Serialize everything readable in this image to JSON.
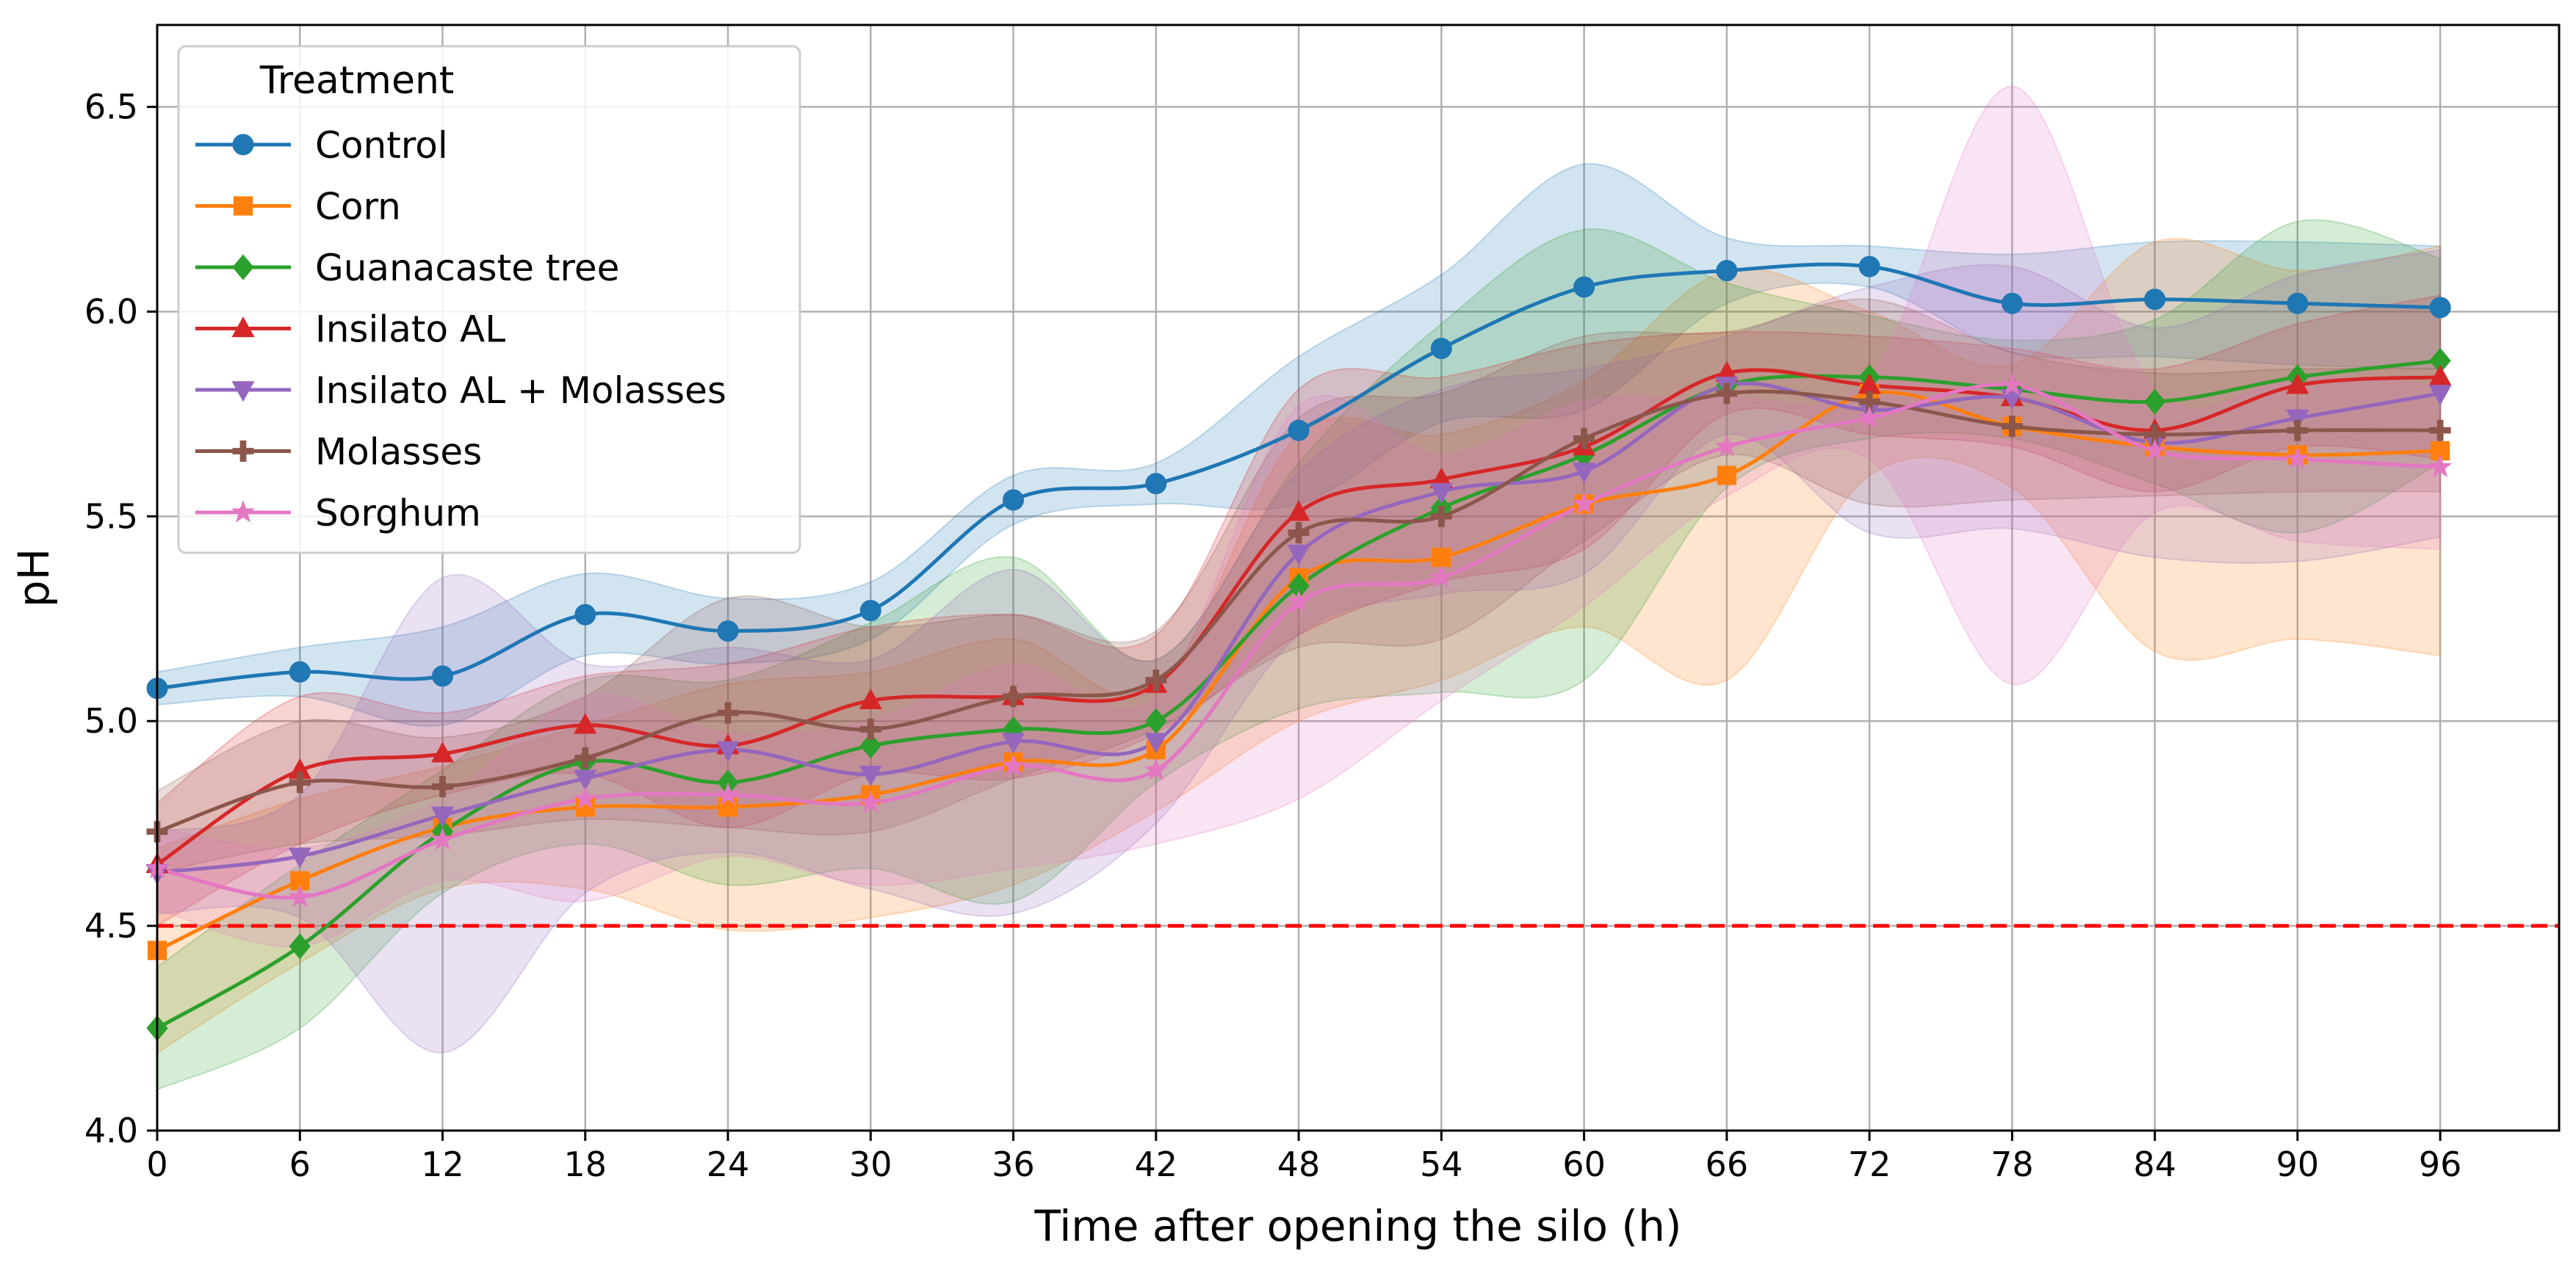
{
  "chart_data": {
    "type": "line",
    "title": "",
    "xlabel": "Time after opening the silo (h)",
    "ylabel": "pH",
    "x": [
      0,
      6,
      12,
      18,
      24,
      30,
      36,
      42,
      48,
      54,
      60,
      66,
      72,
      78,
      84,
      90,
      96
    ],
    "xticks": [
      "0",
      "6",
      "12",
      "18",
      "24",
      "30",
      "36",
      "42",
      "48",
      "54",
      "60",
      "66",
      "72",
      "78",
      "84",
      "90",
      "96"
    ],
    "yticks": [
      "4.0",
      "4.5",
      "5.0",
      "5.5",
      "6.0",
      "6.5"
    ],
    "xlim": [
      0,
      101
    ],
    "ylim": [
      4.0,
      6.7
    ],
    "grid": true,
    "threshold": {
      "y": 4.5,
      "color": "#ff0000",
      "style": "dashed"
    },
    "legend": {
      "title": "Treatment",
      "position": "top-left"
    },
    "series": [
      {
        "name": "Control",
        "color": "#1f77b4",
        "marker": "circle",
        "values": [
          5.08,
          5.12,
          5.11,
          5.26,
          5.22,
          5.27,
          5.54,
          5.58,
          5.71,
          5.91,
          6.06,
          6.1,
          6.11,
          6.02,
          6.03,
          6.02,
          6.01
        ],
        "band": [
          0.04,
          0.06,
          0.12,
          0.1,
          0.08,
          0.07,
          0.06,
          0.05,
          0.18,
          0.18,
          0.3,
          0.08,
          0.05,
          0.12,
          0.14,
          0.15,
          0.15
        ]
      },
      {
        "name": "Corn",
        "color": "#ff7f0e",
        "marker": "square",
        "values": [
          4.44,
          4.61,
          4.74,
          4.79,
          4.79,
          4.82,
          4.9,
          4.93,
          5.35,
          5.4,
          5.53,
          5.6,
          5.8,
          5.72,
          5.67,
          5.65,
          5.66
        ],
        "band": [
          0.25,
          0.2,
          0.15,
          0.2,
          0.3,
          0.3,
          0.3,
          0.15,
          0.35,
          0.3,
          0.3,
          0.5,
          0.2,
          0.15,
          0.5,
          0.45,
          0.5
        ]
      },
      {
        "name": "Guanacaste tree",
        "color": "#2ca02c",
        "marker": "diamond",
        "values": [
          4.25,
          4.45,
          4.73,
          4.9,
          4.85,
          4.94,
          4.98,
          5.0,
          5.33,
          5.52,
          5.65,
          5.82,
          5.84,
          5.81,
          5.78,
          5.84,
          5.88
        ],
        "band": [
          0.15,
          0.2,
          0.15,
          0.2,
          0.25,
          0.3,
          0.42,
          0.15,
          0.3,
          0.45,
          0.55,
          0.25,
          0.15,
          0.12,
          0.2,
          0.38,
          0.25
        ]
      },
      {
        "name": "Insilato AL",
        "color": "#d62728",
        "marker": "triangle-up",
        "values": [
          4.65,
          4.88,
          4.92,
          4.99,
          4.94,
          5.05,
          5.06,
          5.09,
          5.51,
          5.59,
          5.67,
          5.85,
          5.82,
          5.79,
          5.71,
          5.82,
          5.84
        ],
        "band": [
          0.15,
          0.18,
          0.1,
          0.12,
          0.2,
          0.18,
          0.2,
          0.12,
          0.3,
          0.25,
          0.25,
          0.1,
          0.12,
          0.12,
          0.15,
          0.15,
          0.2
        ]
      },
      {
        "name": "Insilato AL + Molasses",
        "color": "#9467bd",
        "marker": "triangle-down",
        "values": [
          4.63,
          4.67,
          4.77,
          4.86,
          4.93,
          4.87,
          4.95,
          4.95,
          5.41,
          5.56,
          5.61,
          5.82,
          5.76,
          5.79,
          5.68,
          5.74,
          5.8
        ],
        "band": [
          0.1,
          0.15,
          0.58,
          0.28,
          0.25,
          0.28,
          0.42,
          0.2,
          0.2,
          0.25,
          0.25,
          0.12,
          0.3,
          0.32,
          0.28,
          0.35,
          0.35
        ]
      },
      {
        "name": "Molasses",
        "color": "#8c564b",
        "marker": "plus",
        "values": [
          4.73,
          4.85,
          4.84,
          4.91,
          5.02,
          4.98,
          5.06,
          5.1,
          5.46,
          5.5,
          5.69,
          5.8,
          5.78,
          5.72,
          5.7,
          5.71,
          5.71
        ],
        "band": [
          0.1,
          0.15,
          0.12,
          0.15,
          0.28,
          0.25,
          0.2,
          0.12,
          0.28,
          0.3,
          0.25,
          0.15,
          0.25,
          0.18,
          0.15,
          0.15,
          0.15
        ]
      },
      {
        "name": "Sorghum",
        "color": "#e377c2",
        "marker": "star",
        "values": [
          4.64,
          4.57,
          4.71,
          4.81,
          4.82,
          4.8,
          4.89,
          4.88,
          5.29,
          5.35,
          5.53,
          5.67,
          5.74,
          5.82,
          5.66,
          5.64,
          5.62
        ],
        "band": [
          0.1,
          0.12,
          0.1,
          0.25,
          0.15,
          0.2,
          0.25,
          0.18,
          0.48,
          0.3,
          0.25,
          0.12,
          0.1,
          0.73,
          0.15,
          0.2,
          0.2
        ]
      }
    ]
  }
}
